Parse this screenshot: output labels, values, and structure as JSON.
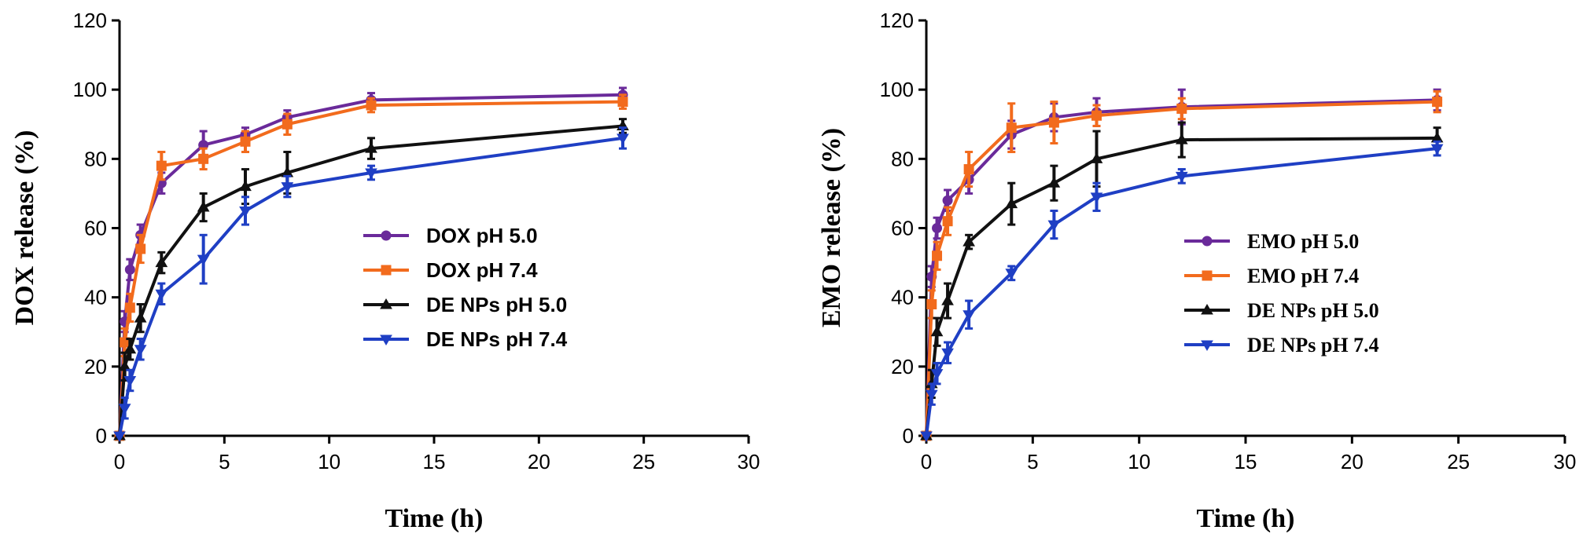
{
  "colors": {
    "purple": "#6a2a9a",
    "orange": "#f26b1d",
    "black": "#111111",
    "blue": "#1f3fc4"
  },
  "chart_data": [
    {
      "type": "line",
      "xlabel": "Time (h)",
      "ylabel": "DOX release (%)",
      "xlim": [
        0,
        30
      ],
      "ylim": [
        0,
        120
      ],
      "xticks": [
        0,
        5,
        10,
        15,
        20,
        25,
        30
      ],
      "yticks": [
        0,
        20,
        40,
        60,
        80,
        100,
        120
      ],
      "grid": false,
      "legend_position": "center-right",
      "series": [
        {
          "name": "DOX pH 5.0",
          "color": "#6a2a9a",
          "marker": "circle",
          "x": [
            0,
            0.25,
            0.5,
            1,
            2,
            4,
            6,
            8,
            12,
            24
          ],
          "y": [
            0,
            33,
            48,
            58,
            73,
            84,
            87,
            92,
            97,
            98.5
          ],
          "err": [
            0,
            3,
            3,
            3,
            3,
            4,
            2,
            2,
            2,
            2
          ]
        },
        {
          "name": "DOX pH 7.4",
          "color": "#f26b1d",
          "marker": "square",
          "x": [
            0,
            0.25,
            0.5,
            1,
            2,
            4,
            6,
            8,
            12,
            24
          ],
          "y": [
            0,
            27,
            37,
            54,
            78,
            80,
            85,
            90,
            95.5,
            96.5
          ],
          "err": [
            0,
            4,
            4,
            4,
            4,
            3,
            3,
            3,
            2,
            2
          ]
        },
        {
          "name": "DE NPs pH 5.0",
          "color": "#111111",
          "marker": "triangle-up",
          "x": [
            0,
            0.25,
            0.5,
            1,
            2,
            4,
            6,
            8,
            12,
            24
          ],
          "y": [
            0,
            20,
            25,
            34,
            50,
            66,
            72,
            76,
            83,
            89.5
          ],
          "err": [
            0,
            4,
            3,
            4,
            3,
            4,
            5,
            6,
            3,
            2
          ]
        },
        {
          "name": "DE NPs  pH 7.4",
          "color": "#1f3fc4",
          "marker": "triangle-down",
          "x": [
            0,
            0.25,
            0.5,
            1,
            2,
            4,
            6,
            8,
            12,
            24
          ],
          "y": [
            0,
            8,
            16,
            25,
            41,
            51,
            65,
            72,
            76,
            86
          ],
          "err": [
            0,
            3,
            3,
            3,
            3,
            7,
            4,
            3,
            2,
            3
          ]
        }
      ]
    },
    {
      "type": "line",
      "xlabel": "Time (h)",
      "ylabel": "EMO release  (%)",
      "xlim": [
        0,
        30
      ],
      "ylim": [
        0,
        120
      ],
      "xticks": [
        0,
        5,
        10,
        15,
        20,
        25,
        30
      ],
      "yticks": [
        0,
        20,
        40,
        60,
        80,
        100,
        120
      ],
      "grid": false,
      "legend_position": "center-right",
      "series": [
        {
          "name": "EMO pH 5.0",
          "color": "#6a2a9a",
          "marker": "circle",
          "x": [
            0,
            0.25,
            0.5,
            1,
            2,
            4,
            6,
            8,
            12,
            24
          ],
          "y": [
            0,
            46,
            60,
            68,
            74,
            87,
            92,
            93.5,
            95,
            97
          ],
          "err": [
            0,
            3,
            3,
            3,
            4,
            4,
            4,
            4,
            5,
            3
          ]
        },
        {
          "name": "EMO pH 7.4",
          "color": "#f26b1d",
          "marker": "square",
          "x": [
            0,
            0.25,
            0.5,
            1,
            2,
            4,
            6,
            8,
            12,
            24
          ],
          "y": [
            0,
            38,
            52,
            62,
            77,
            89,
            90.5,
            92.5,
            94.5,
            96.5
          ],
          "err": [
            0,
            4,
            4,
            4,
            5,
            7,
            6,
            3,
            3,
            3
          ]
        },
        {
          "name": "DE NPs pH 5.0",
          "color": "#111111",
          "marker": "triangle-up",
          "x": [
            0,
            0.25,
            0.5,
            1,
            2,
            4,
            6,
            8,
            12,
            24
          ],
          "y": [
            0,
            15,
            30,
            39,
            56,
            67,
            73,
            80,
            85.5,
            86
          ],
          "err": [
            0,
            4,
            4,
            5,
            2,
            6,
            5,
            8,
            5,
            3
          ]
        },
        {
          "name": "DE NPs pH 7.4",
          "color": "#1f3fc4",
          "marker": "triangle-down",
          "x": [
            0,
            0.25,
            0.5,
            1,
            2,
            4,
            6,
            8,
            12,
            24
          ],
          "y": [
            0,
            12,
            18,
            24,
            35,
            47,
            61,
            69,
            75,
            83
          ],
          "err": [
            0,
            3,
            3,
            3,
            4,
            2,
            4,
            4,
            2,
            2
          ]
        }
      ]
    }
  ]
}
